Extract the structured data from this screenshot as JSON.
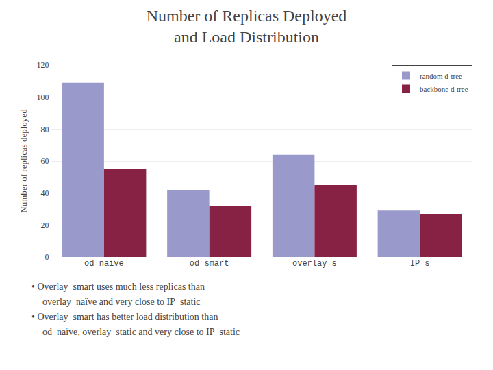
{
  "chart_data": {
    "type": "bar",
    "title": "Number of Replicas Deployed\nand Load Distribution",
    "ylabel": "Number of replicas deployed",
    "categories": [
      "od_naive",
      "od_smart",
      "overlay_s",
      "IP_s"
    ],
    "series": [
      {
        "name": "random d-tree",
        "color": "#9999cc",
        "values": [
          109,
          42,
          64,
          29
        ]
      },
      {
        "name": "backbone d-tree",
        "color": "#882244",
        "values": [
          55,
          32,
          45,
          27
        ]
      }
    ],
    "ylim": [
      0,
      120
    ],
    "yticks": [
      0,
      20,
      40,
      60,
      80,
      100,
      120
    ],
    "grid": true,
    "legend": "upper right",
    "annotations": [
      "• Overlay_smart uses much less replicas than",
      "overlay_naïve and very close to IP_static",
      "• Overlay_smart has better load distribution than",
      "od_naïve, overlay_static and very close to IP_static"
    ]
  }
}
